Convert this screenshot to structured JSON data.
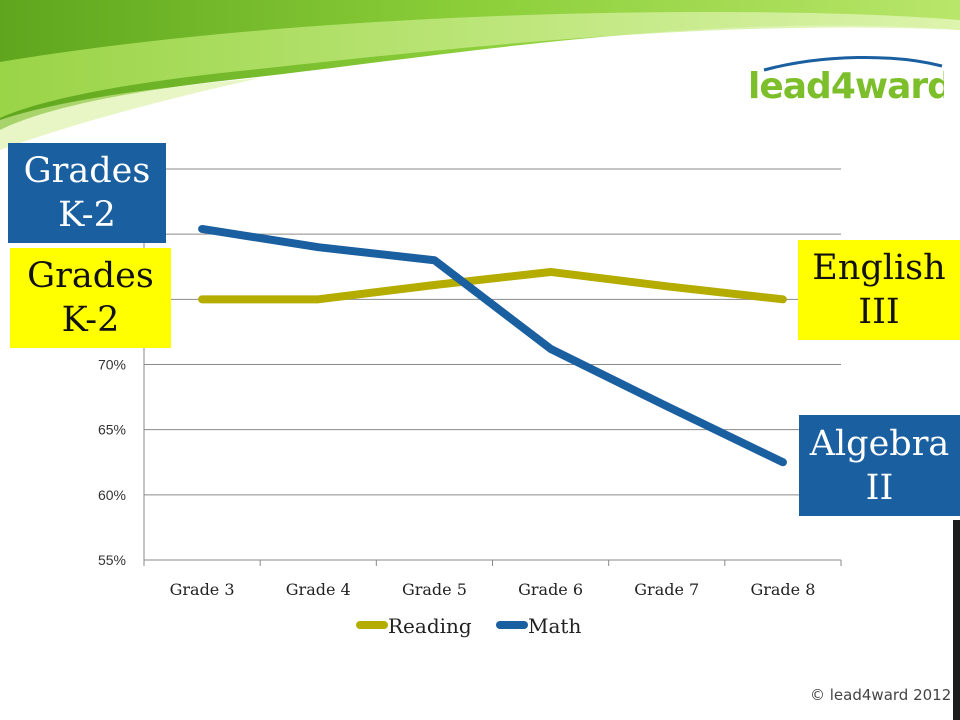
{
  "logo": {
    "text": "lead4ward"
  },
  "copyright": "© lead4ward 2012",
  "callouts": {
    "k2_math": {
      "line1": "Grades",
      "line2": "K-2"
    },
    "k2_reading": {
      "line1": "Grades",
      "line2": "K-2"
    },
    "english": {
      "line1": "English",
      "line2": "III"
    },
    "algebra": {
      "line1": "Algebra",
      "line2": "II"
    }
  },
  "colors": {
    "reading": "#b5ac00",
    "math": "#1a5fa0",
    "callout_blue": "#1a5fa0",
    "callout_yellow": "#ffff00",
    "banner_green": "#7cc12a"
  },
  "chart_data": {
    "type": "line",
    "categories": [
      "Grade 3",
      "Grade 4",
      "Grade 5",
      "Grade 6",
      "Grade 7",
      "Grade 8"
    ],
    "series": [
      {
        "name": "Reading",
        "color": "#b5ac00",
        "values": [
          75,
          75,
          76.1,
          77.1,
          76,
          75
        ]
      },
      {
        "name": "Math",
        "color": "#1a5fa0",
        "values": [
          80.4,
          79,
          78,
          71.2,
          66.8,
          62.5
        ]
      }
    ],
    "ytick_labels": [
      "55%",
      "60%",
      "65%",
      "70%"
    ],
    "ylim": [
      55,
      85
    ],
    "grid": true,
    "legend_position": "bottom"
  }
}
